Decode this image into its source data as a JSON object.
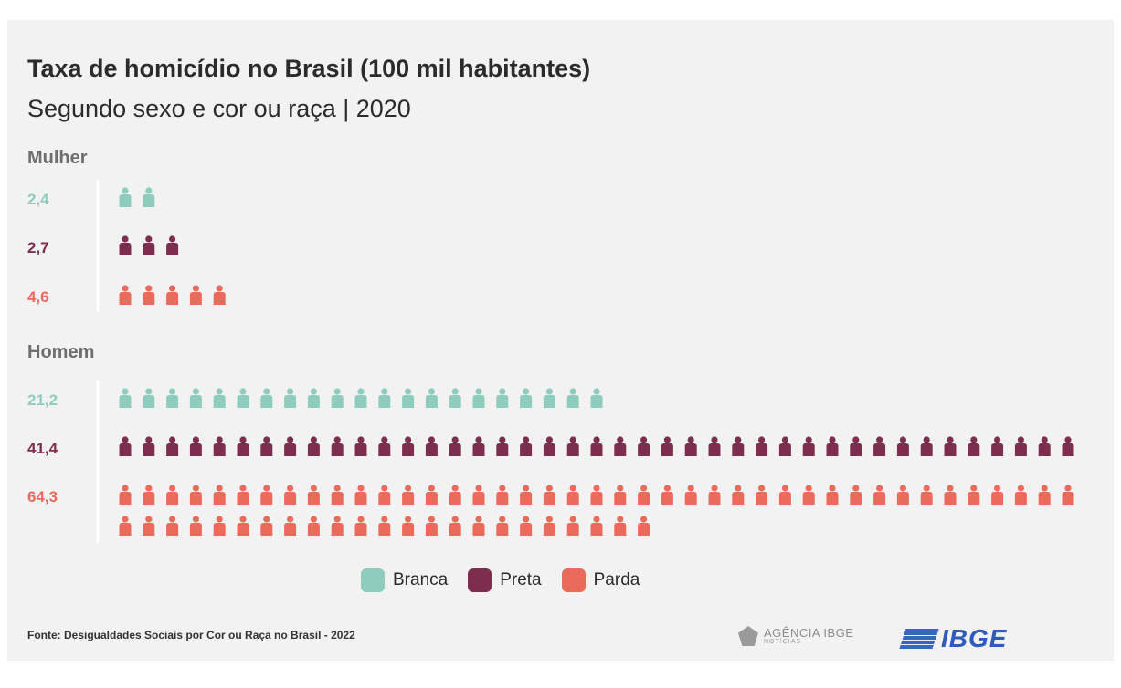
{
  "chart_data": {
    "type": "pictogram",
    "title": "Taxa de homicídio no Brasil (100 mil habitantes)",
    "subtitle": "Segundo sexo e cor ou raça | 2020",
    "legend": [
      {
        "name": "Branca",
        "color": "#8ecdbd"
      },
      {
        "name": "Preta",
        "color": "#7d2e4f"
      },
      {
        "name": "Parda",
        "color": "#ea6a5c"
      }
    ],
    "groups": [
      {
        "name": "Mulher",
        "rows": [
          {
            "series": "Branca",
            "value": 2.4,
            "label": "2,4",
            "icons": 2
          },
          {
            "series": "Preta",
            "value": 2.7,
            "label": "2,7",
            "icons": 3
          },
          {
            "series": "Parda",
            "value": 4.6,
            "label": "4,6",
            "icons": 5
          }
        ]
      },
      {
        "name": "Homem",
        "rows": [
          {
            "series": "Branca",
            "value": 21.2,
            "label": "21,2",
            "icons": 21
          },
          {
            "series": "Preta",
            "value": 41.4,
            "label": "41,4",
            "icons": 41
          },
          {
            "series": "Parda",
            "value": 64.3,
            "label": "64,3",
            "icons": 64
          }
        ]
      }
    ],
    "icons_per_line": 41
  },
  "source": "Fonte: Desigualdades Sociais por Cor ou Raça no Brasil - 2022",
  "logos": {
    "agencia": "AGÊNCIA IBGE",
    "agencia_sub": "NOTÍCIAS",
    "ibge": "IBGE"
  },
  "colors": {
    "background": "#f2f2f2",
    "text": "#2b2b2b",
    "group_label": "#6e6e6e",
    "divider": "#ffffff"
  }
}
